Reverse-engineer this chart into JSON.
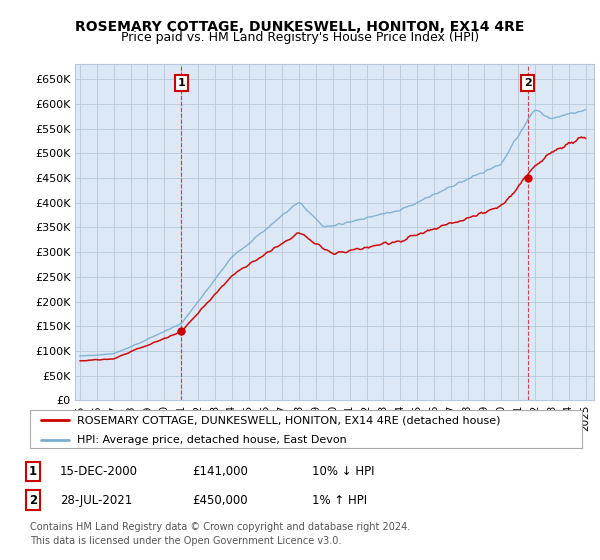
{
  "title": "ROSEMARY COTTAGE, DUNKESWELL, HONITON, EX14 4RE",
  "subtitle": "Price paid vs. HM Land Registry's House Price Index (HPI)",
  "ylim": [
    0,
    680000
  ],
  "yticks": [
    0,
    50000,
    100000,
    150000,
    200000,
    250000,
    300000,
    350000,
    400000,
    450000,
    500000,
    550000,
    600000,
    650000
  ],
  "ytick_labels": [
    "£0",
    "£50K",
    "£100K",
    "£150K",
    "£200K",
    "£250K",
    "£300K",
    "£350K",
    "£400K",
    "£450K",
    "£500K",
    "£550K",
    "£600K",
    "£650K"
  ],
  "xlim_left": 1994.7,
  "xlim_right": 2025.5,
  "bg_color": "#dce8f5",
  "grid_color": "#b8c8dc",
  "line_color_red": "#cc0000",
  "line_color_blue": "#7aadcf",
  "purchase1_x": 2001.0,
  "purchase1_y": 141000,
  "purchase1_label": "1",
  "purchase2_x": 2021.57,
  "purchase2_y": 450000,
  "purchase2_label": "2",
  "legend_red": "ROSEMARY COTTAGE, DUNKESWELL, HONITON, EX14 4RE (detached house)",
  "legend_blue": "HPI: Average price, detached house, East Devon",
  "table_row1": [
    "1",
    "15-DEC-2000",
    "£141,000",
    "10% ↓ HPI"
  ],
  "table_row2": [
    "2",
    "28-JUL-2021",
    "£450,000",
    "1% ↑ HPI"
  ],
  "footnote": "Contains HM Land Registry data © Crown copyright and database right 2024.\nThis data is licensed under the Open Government Licence v3.0.",
  "title_fontsize": 10,
  "subtitle_fontsize": 9,
  "tick_fontsize": 8,
  "legend_fontsize": 8,
  "table_fontsize": 8.5,
  "footnote_fontsize": 7
}
